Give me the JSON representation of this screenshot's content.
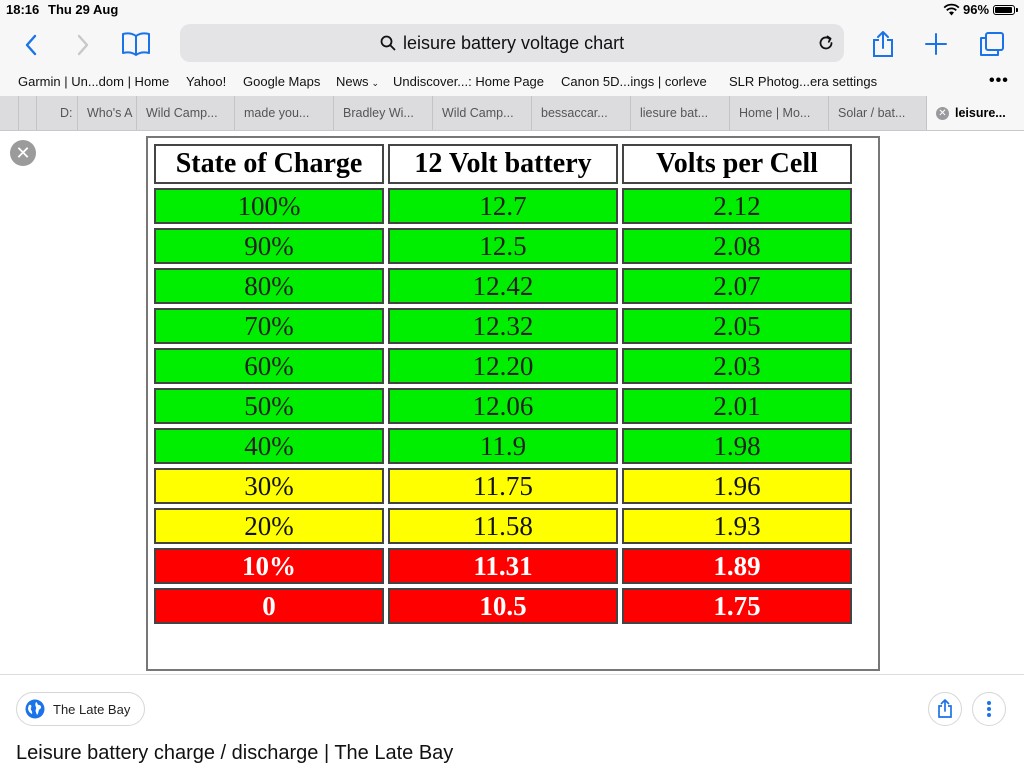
{
  "status": {
    "time": "18:16",
    "date": "Thu 29 Aug",
    "battery": "96%"
  },
  "address": {
    "text": "leisure battery voltage chart"
  },
  "bookmarks": [
    "Garmin | Un...dom | Home",
    "Yahoo!",
    "Google Maps",
    "News",
    "Undiscover...: Home Page",
    "Canon 5D...ings | corleve",
    "SLR Photog...era settings"
  ],
  "tabs": [
    "D:",
    "Who's A",
    "Wild Camp...",
    "made you...",
    "Bradley Wi...",
    "Wild Camp...",
    "bessaccar...",
    "liesure bat...",
    "Home | Mo...",
    "Solar / bat...",
    "leisure..."
  ],
  "chart_data": {
    "type": "table",
    "columns": [
      "State of Charge",
      "12 Volt battery",
      "Volts per Cell"
    ],
    "rows": [
      [
        "100%",
        "12.7",
        "2.12"
      ],
      [
        "90%",
        "12.5",
        "2.08"
      ],
      [
        "80%",
        "12.42",
        "2.07"
      ],
      [
        "70%",
        "12.32",
        "2.05"
      ],
      [
        "60%",
        "12.20",
        "2.03"
      ],
      [
        "50%",
        "12.06",
        "2.01"
      ],
      [
        "40%",
        "11.9",
        "1.98"
      ],
      [
        "30%",
        "11.75",
        "1.96"
      ],
      [
        "20%",
        "11.58",
        "1.93"
      ],
      [
        "10%",
        "11.31",
        "1.89"
      ],
      [
        "0",
        "10.5",
        "1.75"
      ]
    ],
    "row_colors": [
      "green",
      "green",
      "green",
      "green",
      "green",
      "green",
      "green",
      "yellow",
      "yellow",
      "red",
      "red"
    ],
    "colors": {
      "green": "#00ee00",
      "yellow": "#ffff00",
      "red": "#ff0000"
    }
  },
  "source": {
    "name": "The Late Bay",
    "caption": "Leisure battery charge / discharge | The Late Bay"
  },
  "colors": {
    "accent": "#1a73e8",
    "toolbar_bg": "#f7f7f7",
    "tabbar_bg": "#dcdcdf"
  }
}
